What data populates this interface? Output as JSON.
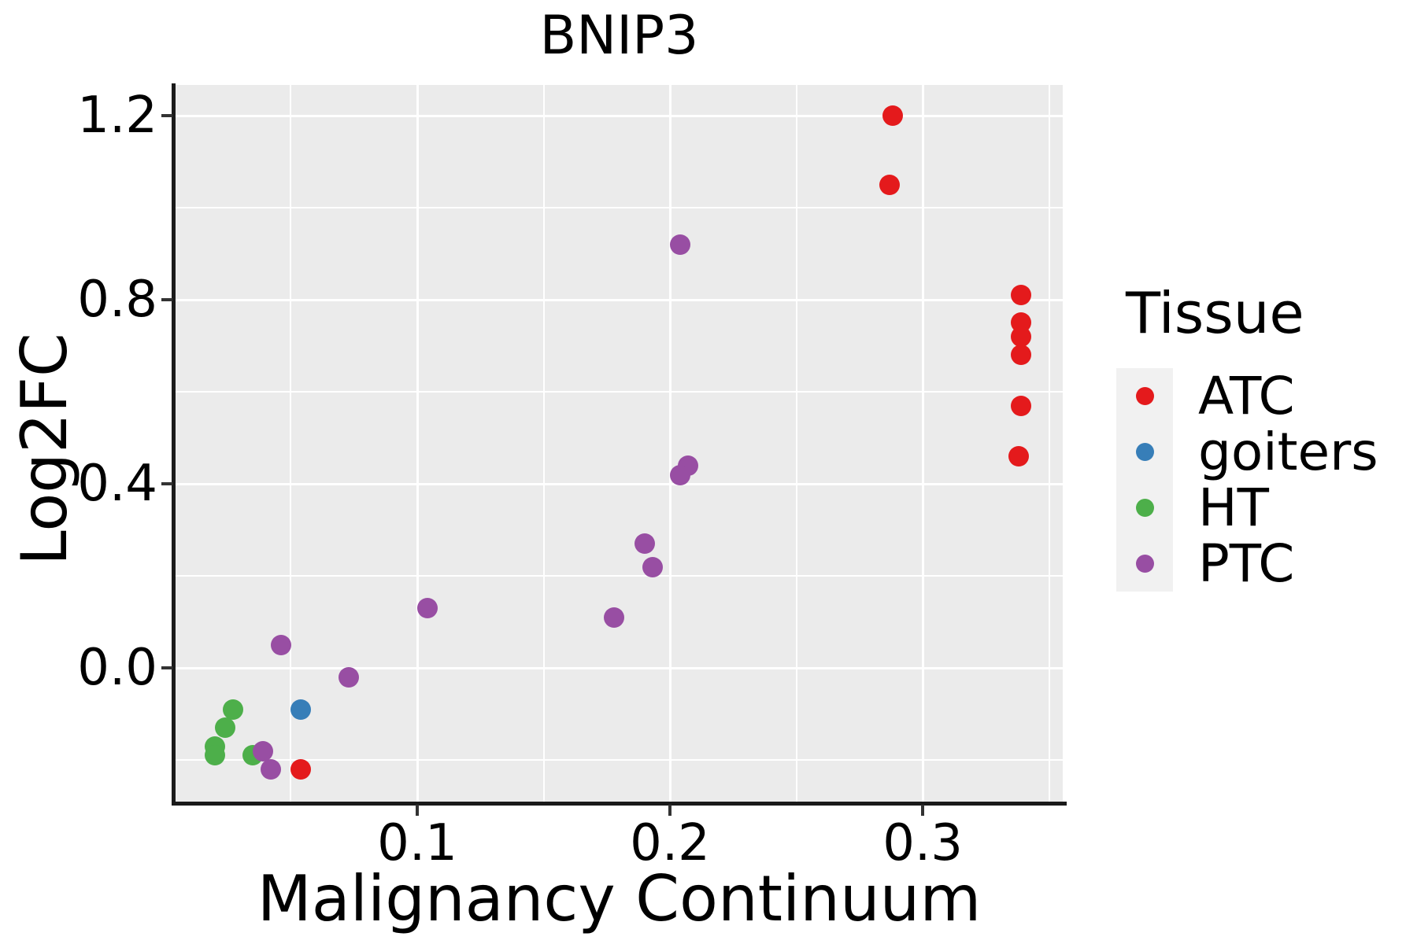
{
  "chart_data": {
    "type": "scatter",
    "title": "BNIP3",
    "xlabel": "Malignancy Continuum",
    "ylabel": "Log2FC",
    "xlim": [
      0.0044,
      0.3554
    ],
    "ylim": [
      -0.292,
      1.267
    ],
    "grid": "on",
    "panel_bg": "#EBEBEB",
    "gridline_color": "#FFFFFF",
    "x_tick_values": [
      0.1,
      0.2,
      0.3
    ],
    "x_tick_labels": [
      "0.1",
      "0.2",
      "0.3"
    ],
    "x_minor_ticks": [
      0.05,
      0.15,
      0.25,
      0.35
    ],
    "y_tick_values": [
      0.0,
      0.4,
      0.8,
      1.2
    ],
    "y_tick_labels": [
      "0.0",
      "0.4",
      "0.8",
      "1.2"
    ],
    "y_minor_ticks": [
      -0.2,
      0.2,
      0.6,
      1.0
    ],
    "legend": {
      "title": "Tissue",
      "position": "right"
    },
    "series": [
      {
        "name": "ATC",
        "color": "#E41A1C",
        "points": [
          [
            0.288,
            1.2
          ],
          [
            0.287,
            1.05
          ],
          [
            0.339,
            0.81
          ],
          [
            0.339,
            0.75
          ],
          [
            0.339,
            0.72
          ],
          [
            0.339,
            0.68
          ],
          [
            0.339,
            0.57
          ],
          [
            0.338,
            0.46
          ],
          [
            0.054,
            -0.22
          ]
        ]
      },
      {
        "name": "goiters",
        "color": "#377EB8",
        "points": [
          [
            0.054,
            -0.09
          ]
        ]
      },
      {
        "name": "HT",
        "color": "#4DAF4A",
        "points": [
          [
            0.027,
            -0.09
          ],
          [
            0.024,
            -0.13
          ],
          [
            0.02,
            -0.17
          ],
          [
            0.02,
            -0.19
          ],
          [
            0.035,
            -0.19
          ]
        ]
      },
      {
        "name": "PTC",
        "color": "#984EA3",
        "points": [
          [
            0.204,
            0.92
          ],
          [
            0.207,
            0.44
          ],
          [
            0.204,
            0.42
          ],
          [
            0.19,
            0.27
          ],
          [
            0.193,
            0.22
          ],
          [
            0.178,
            0.11
          ],
          [
            0.104,
            0.13
          ],
          [
            0.046,
            0.05
          ],
          [
            0.073,
            -0.02
          ],
          [
            0.039,
            -0.18
          ],
          [
            0.042,
            -0.22
          ]
        ]
      }
    ]
  }
}
